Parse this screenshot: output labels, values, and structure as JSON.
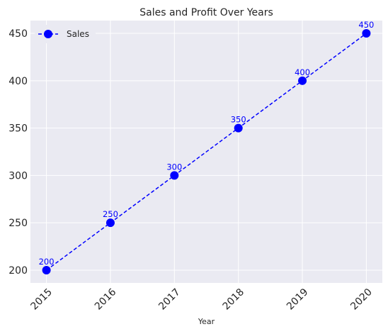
{
  "chart_data": {
    "type": "line",
    "title": "Sales and Profit Over Years",
    "xlabel": "Year",
    "ylabel": "",
    "x": [
      2015,
      2016,
      2017,
      2018,
      2019,
      2020
    ],
    "x_tick_labels": [
      "2015",
      "2016",
      "2017",
      "2018",
      "2019",
      "2020"
    ],
    "y_ticks": [
      200,
      250,
      300,
      350,
      400,
      450
    ],
    "y_tick_labels": [
      "200",
      "250",
      "300",
      "350",
      "400",
      "450"
    ],
    "ylim": [
      186.5,
      463.5
    ],
    "xlim": [
      2014.75,
      2020.25
    ],
    "grid": true,
    "legend_position": "upper-left",
    "series": [
      {
        "name": "Sales",
        "values": [
          200,
          250,
          300,
          350,
          400,
          450
        ],
        "data_labels": [
          "200",
          "250",
          "300",
          "350",
          "400",
          "450"
        ],
        "color": "#0000ff",
        "line_style": "dashed",
        "marker": "circle"
      }
    ]
  },
  "colors": {
    "plot_background": "#eaeaf2",
    "grid": "#ffffff",
    "text": "#262626"
  }
}
